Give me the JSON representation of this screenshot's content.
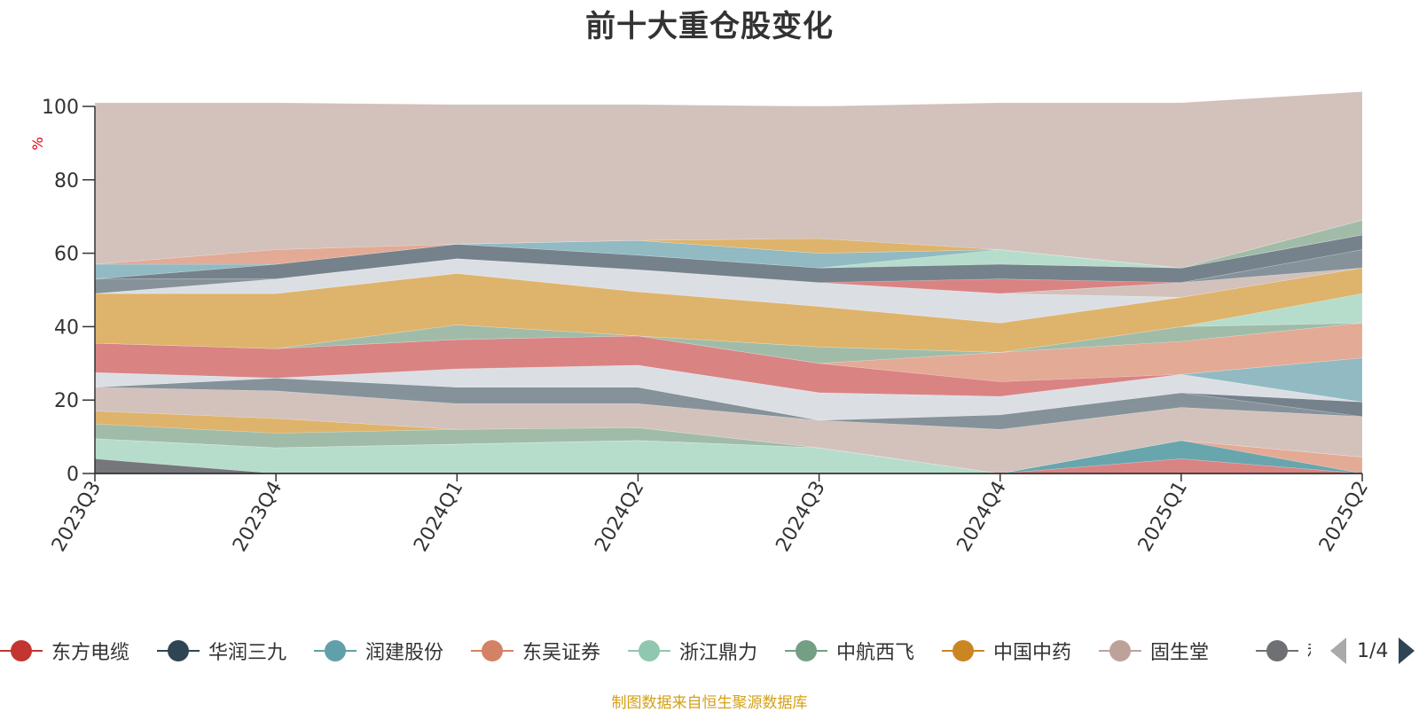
{
  "chart_data": {
    "type": "area",
    "stacked": true,
    "title": "前十大重仓股变化",
    "ylabel": "%",
    "ylim": [
      0,
      100
    ],
    "yticks": [
      0,
      20,
      40,
      60,
      80,
      100
    ],
    "categories": [
      "2023Q3",
      "2023Q4",
      "2024Q1",
      "2024Q2",
      "2024Q3",
      "2024Q4",
      "2025Q1",
      "2025Q2"
    ],
    "series": [
      {
        "name": "",
        "color": "#6e7074",
        "values": [
          4,
          0,
          0,
          0,
          0,
          0,
          0,
          0
        ]
      },
      {
        "name": "",
        "color": "#b2dbc8",
        "values": [
          5.5,
          7,
          8,
          9,
          7,
          0,
          0,
          0
        ]
      },
      {
        "name": "",
        "color": "#d87c7c",
        "values": [
          0,
          0,
          0,
          0,
          0,
          0,
          4,
          0
        ]
      },
      {
        "name": "",
        "color": "#61a0a8",
        "values": [
          0,
          0,
          0,
          0,
          0,
          0,
          5,
          0
        ]
      },
      {
        "name": "",
        "color": "#e1a58f",
        "values": [
          0,
          0,
          0,
          0,
          0,
          0,
          0,
          4.5
        ]
      },
      {
        "name": "",
        "color": "#9bb8a4",
        "values": [
          4,
          4,
          4,
          3.5,
          0,
          0,
          0,
          0
        ]
      },
      {
        "name": "",
        "color": "#dcaf63",
        "values": [
          3.5,
          4,
          0,
          0,
          0,
          0,
          0,
          0
        ]
      },
      {
        "name": "",
        "color": "#d1beb7",
        "values": [
          6.5,
          7.5,
          7,
          6.5,
          7.5,
          12,
          9,
          11
        ]
      },
      {
        "name": "",
        "color": "#7f8c95",
        "values": [
          0,
          3.5,
          4.5,
          4.5,
          0,
          4,
          4,
          0
        ]
      },
      {
        "name": "",
        "color": "#6e7b86",
        "values": [
          0,
          0,
          0,
          0,
          0,
          0,
          0,
          4
        ]
      },
      {
        "name": "",
        "color": "#d9dde3",
        "values": [
          4,
          0,
          5,
          6,
          7.5,
          5,
          5,
          0
        ]
      },
      {
        "name": "",
        "color": "#8bb6bf",
        "values": [
          0,
          0,
          0,
          0,
          0,
          0,
          0,
          12
        ]
      },
      {
        "name": "",
        "color": "#d87c7c",
        "values": [
          8,
          8,
          8,
          8,
          8,
          4,
          0,
          0
        ]
      },
      {
        "name": "",
        "color": "#e1a58f",
        "values": [
          0,
          0,
          0,
          0,
          0,
          8,
          9,
          9.5
        ]
      },
      {
        "name": "",
        "color": "#9bb8a4",
        "values": [
          0,
          0,
          4,
          0,
          4.5,
          0,
          4,
          0
        ]
      },
      {
        "name": "",
        "color": "#b2dbc8",
        "values": [
          0,
          0,
          0,
          0,
          0,
          0,
          0,
          8
        ]
      },
      {
        "name": "",
        "color": "#dcaf63",
        "values": [
          13.5,
          15,
          14,
          12,
          11,
          8,
          8,
          7
        ]
      },
      {
        "name": "",
        "color": "#d9dde3",
        "values": [
          0,
          4,
          4,
          6,
          6.5,
          8,
          0,
          0
        ]
      },
      {
        "name": "",
        "color": "#d1beb7",
        "values": [
          0,
          0,
          0,
          0,
          0,
          0,
          4,
          0
        ]
      },
      {
        "name": "",
        "color": "#7f8c95",
        "values": [
          4,
          0,
          0,
          0,
          0,
          0,
          0,
          5
        ]
      },
      {
        "name": "",
        "color": "#d87c7c",
        "values": [
          0,
          0,
          0,
          0,
          0,
          4,
          0,
          0
        ]
      },
      {
        "name": "",
        "color": "#6e7b86",
        "values": [
          0,
          4,
          4,
          4,
          4,
          4,
          4,
          4
        ]
      },
      {
        "name": "",
        "color": "#b2dbc8",
        "values": [
          0,
          0,
          0,
          0,
          0,
          4,
          0,
          0
        ]
      },
      {
        "name": "",
        "color": "#8bb6bf",
        "values": [
          4,
          0,
          0,
          4,
          4,
          0,
          0,
          0
        ]
      },
      {
        "name": "",
        "color": "#9bb8a4",
        "values": [
          0,
          0,
          0,
          0,
          0,
          0,
          0,
          4
        ]
      },
      {
        "name": "",
        "color": "#e1a58f",
        "values": [
          0,
          4,
          0,
          0,
          0,
          0,
          0,
          0
        ]
      },
      {
        "name": "",
        "color": "#dcaf63",
        "values": [
          0,
          0,
          0,
          0,
          4,
          0,
          0,
          0
        ]
      },
      {
        "name": "",
        "color": "#d1beb7",
        "values": [
          44,
          40,
          38,
          37,
          36,
          40,
          45,
          35
        ]
      }
    ]
  },
  "legend": {
    "items": [
      {
        "label": "东方电缆",
        "color": "#c23531"
      },
      {
        "label": "华润三九",
        "color": "#2f4554"
      },
      {
        "label": "润建股份",
        "color": "#61a0a8"
      },
      {
        "label": "东吴证券",
        "color": "#d48265"
      },
      {
        "label": "浙江鼎力",
        "color": "#91c7ae"
      },
      {
        "label": "中航西飞",
        "color": "#749f83"
      },
      {
        "label": "中国中药",
        "color": "#ca8622"
      },
      {
        "label": "固生堂",
        "color": "#bda29a"
      },
      {
        "label": "科锐",
        "color": "#6e7074"
      }
    ],
    "page_text": "1/4"
  },
  "source_note": "制图数据来自恒生聚源数据库"
}
